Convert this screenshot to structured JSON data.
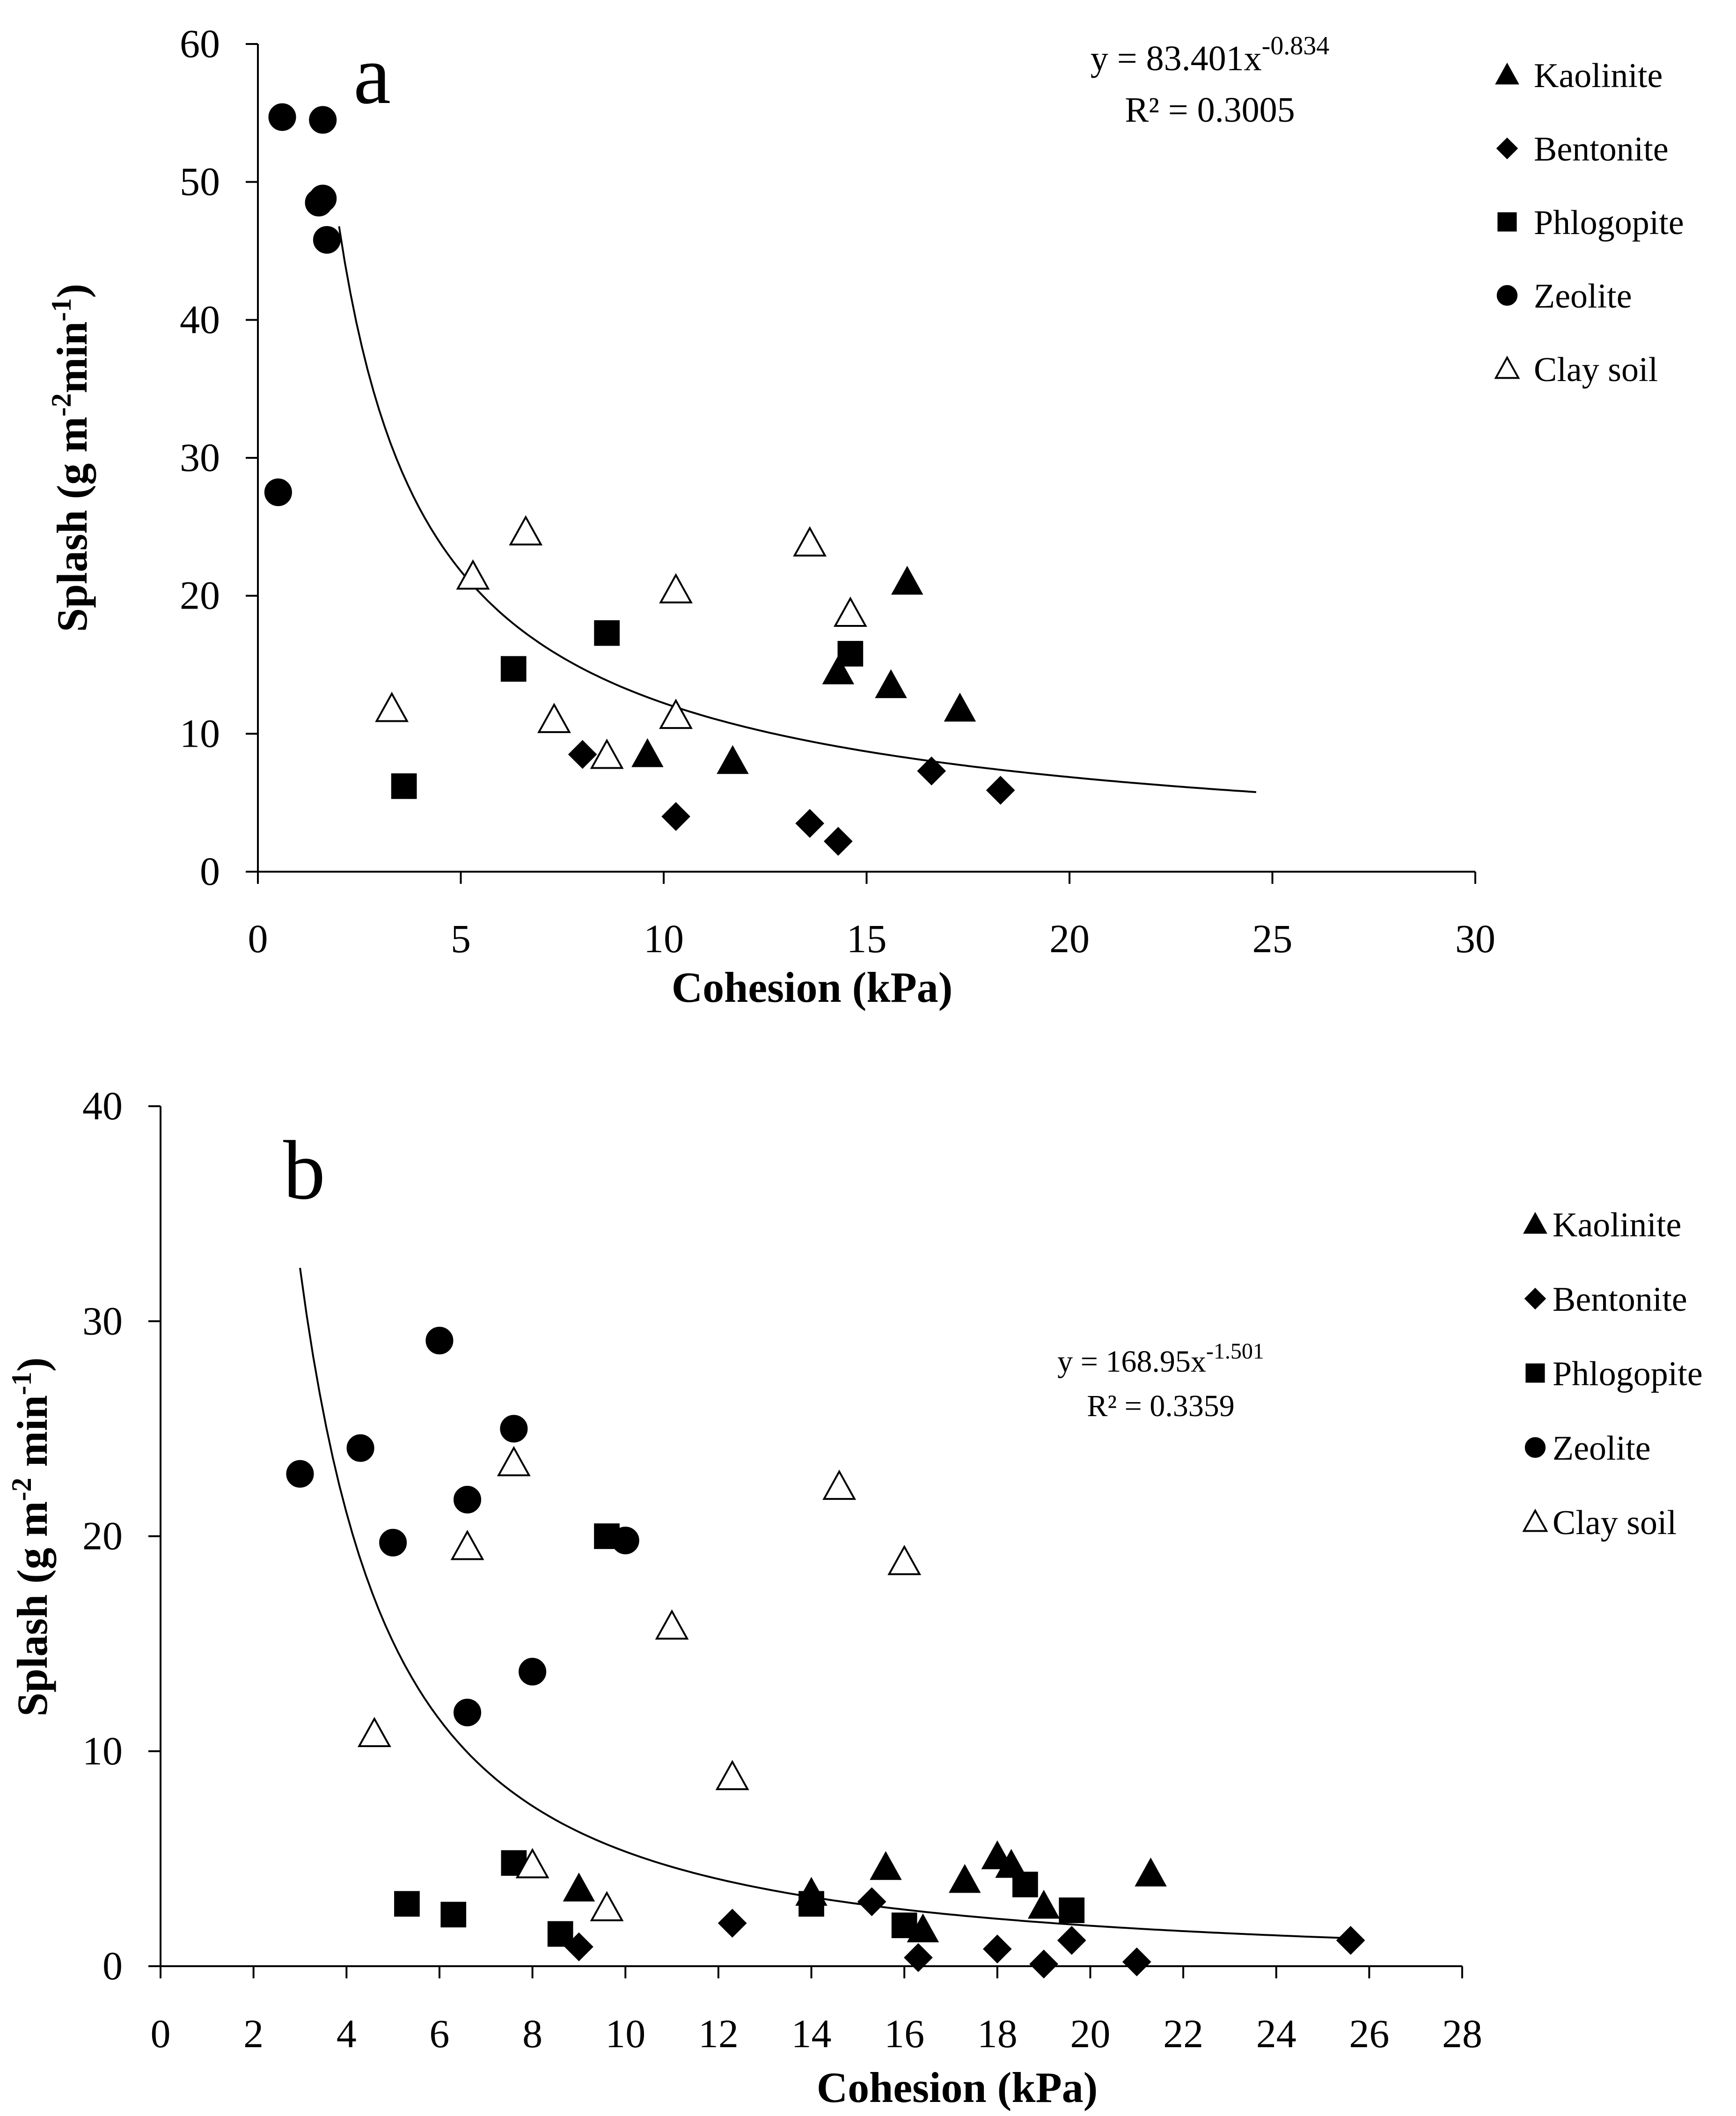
{
  "chart_data": [
    {
      "type": "scatter",
      "panel_label": "a",
      "title": "",
      "xlabel": "Cohesion (kPa)",
      "ylabel": {
        "base": "Splash (g m",
        "sup1": "-2",
        "mid": "min",
        "sup2": "-1",
        "end": ")"
      },
      "xlim": [
        0,
        30
      ],
      "ylim": [
        0,
        60
      ],
      "xticks": [
        0,
        5,
        10,
        15,
        20,
        25,
        30
      ],
      "yticks": [
        0,
        10,
        20,
        30,
        40,
        50,
        60
      ],
      "xtick_labels": [
        "0",
        "5",
        "10",
        "15",
        "20",
        "25",
        "30"
      ],
      "ytick_labels": [
        "0",
        "10",
        "20",
        "30",
        "40",
        "50",
        "60"
      ],
      "grid": false,
      "legend_position": "right",
      "trendline": {
        "type": "power",
        "a": 83.401,
        "b": -0.834,
        "x_range": [
          2.0,
          24.6
        ],
        "equation": {
          "base": "y = 83.401x",
          "exp": "-0.834"
        },
        "r2_text": "R² = 0.3005"
      },
      "series": [
        {
          "name": "Kaolinite",
          "marker": "triangle",
          "filled": true,
          "points": [
            [
              9.6,
              8.5
            ],
            [
              11.7,
              8.0
            ],
            [
              14.3,
              14.5
            ],
            [
              15.6,
              13.5
            ],
            [
              16.0,
              21.0
            ],
            [
              17.3,
              11.8
            ]
          ]
        },
        {
          "name": "Bentonite",
          "marker": "diamond",
          "filled": true,
          "points": [
            [
              8.0,
              8.5
            ],
            [
              10.3,
              4.0
            ],
            [
              13.6,
              3.5
            ],
            [
              14.3,
              2.2
            ],
            [
              16.6,
              7.3
            ],
            [
              18.3,
              5.9
            ]
          ]
        },
        {
          "name": "Phlogopite",
          "marker": "square",
          "filled": true,
          "points": [
            [
              3.6,
              6.2
            ],
            [
              6.3,
              14.7
            ],
            [
              8.6,
              17.3
            ],
            [
              14.6,
              15.8
            ]
          ]
        },
        {
          "name": "Zeolite",
          "marker": "circle",
          "filled": true,
          "points": [
            [
              0.5,
              27.5
            ],
            [
              0.6,
              54.7
            ],
            [
              1.6,
              54.5
            ],
            [
              1.5,
              48.5
            ],
            [
              1.6,
              48.8
            ],
            [
              1.7,
              45.8
            ]
          ]
        },
        {
          "name": "Clay soil",
          "marker": "triangle",
          "filled": false,
          "points": [
            [
              3.3,
              11.8
            ],
            [
              5.3,
              21.4
            ],
            [
              6.6,
              24.6
            ],
            [
              7.3,
              11.0
            ],
            [
              8.6,
              8.4
            ],
            [
              10.3,
              20.4
            ],
            [
              10.3,
              11.3
            ],
            [
              13.6,
              23.8
            ],
            [
              14.6,
              18.7
            ]
          ]
        }
      ]
    },
    {
      "type": "scatter",
      "panel_label": "b",
      "title": "",
      "xlabel": "Cohesion (kPa)",
      "ylabel": {
        "base": "Splash (g m",
        "sup1": "-2",
        "mid": " min",
        "sup2": "-1",
        "end": ")"
      },
      "xlim": [
        0,
        28
      ],
      "ylim": [
        0,
        40
      ],
      "xticks": [
        0,
        2,
        4,
        6,
        8,
        10,
        12,
        14,
        16,
        18,
        20,
        22,
        24,
        26,
        28
      ],
      "yticks": [
        0,
        10,
        20,
        30,
        40
      ],
      "xtick_labels": [
        "0",
        "2",
        "4",
        "6",
        "8",
        "10",
        "12",
        "14",
        "16",
        "18",
        "20",
        "22",
        "24",
        "26",
        "28"
      ],
      "ytick_labels": [
        "0",
        "10",
        "20",
        "30",
        "40"
      ],
      "grid": false,
      "legend_position": "right",
      "trendline": {
        "type": "power",
        "a": 168.95,
        "b": -1.501,
        "x_range": [
          3.0,
          25.6
        ],
        "equation": {
          "base": "y = 168.95x",
          "exp": "-1.501"
        },
        "r2_text": "R² = 0.3359"
      },
      "series": [
        {
          "name": "Kaolinite",
          "marker": "triangle",
          "filled": true,
          "points": [
            [
              9.0,
              3.6
            ],
            [
              14.0,
              3.4
            ],
            [
              15.6,
              4.6
            ],
            [
              16.4,
              1.7
            ],
            [
              17.3,
              4.0
            ],
            [
              18.0,
              5.1
            ],
            [
              18.3,
              4.7
            ],
            [
              19.0,
              2.8
            ],
            [
              21.3,
              4.3
            ]
          ]
        },
        {
          "name": "Bentonite",
          "marker": "diamond",
          "filled": true,
          "points": [
            [
              9.0,
              0.9
            ],
            [
              12.3,
              2.0
            ],
            [
              15.3,
              3.0
            ],
            [
              16.3,
              0.4
            ],
            [
              18.0,
              0.8
            ],
            [
              19.0,
              0.1
            ],
            [
              19.6,
              1.2
            ],
            [
              21.0,
              0.2
            ],
            [
              25.6,
              1.2
            ]
          ]
        },
        {
          "name": "Phlogopite",
          "marker": "square",
          "filled": true,
          "points": [
            [
              5.3,
              2.9
            ],
            [
              6.3,
              2.4
            ],
            [
              7.6,
              4.8
            ],
            [
              8.6,
              1.5
            ],
            [
              9.6,
              20.0
            ],
            [
              14.0,
              2.9
            ],
            [
              16.0,
              1.9
            ],
            [
              18.6,
              3.8
            ],
            [
              19.6,
              2.6
            ]
          ]
        },
        {
          "name": "Zeolite",
          "marker": "circle",
          "filled": true,
          "points": [
            [
              3.0,
              22.9
            ],
            [
              4.3,
              24.1
            ],
            [
              5.0,
              19.7
            ],
            [
              6.0,
              29.1
            ],
            [
              6.6,
              21.7
            ],
            [
              6.6,
              11.8
            ],
            [
              7.6,
              25.0
            ],
            [
              8.0,
              13.7
            ],
            [
              10.0,
              19.8
            ]
          ]
        },
        {
          "name": "Clay soil",
          "marker": "triangle",
          "filled": false,
          "points": [
            [
              4.6,
              10.8
            ],
            [
              6.6,
              19.5
            ],
            [
              7.6,
              23.4
            ],
            [
              8.0,
              4.7
            ],
            [
              9.6,
              2.7
            ],
            [
              11.0,
              15.8
            ],
            [
              12.3,
              8.8
            ],
            [
              14.6,
              22.3
            ],
            [
              16.0,
              18.8
            ]
          ]
        }
      ]
    }
  ]
}
